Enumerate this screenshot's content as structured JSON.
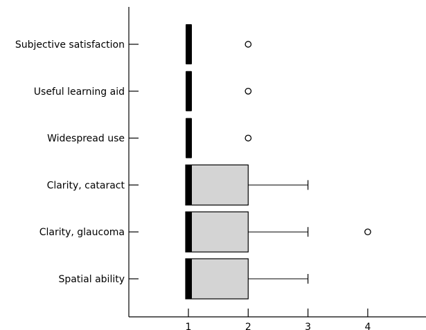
{
  "chart_data": {
    "type": "boxplot",
    "orientation": "horizontal",
    "title": "",
    "xlabel": "",
    "ylabel": "",
    "x_ticks": [
      "1",
      "2",
      "3",
      "4"
    ],
    "xlim": [
      0.2,
      5
    ],
    "grid": false,
    "colors": {
      "box_fill": "#d4d4d4",
      "median": "#000000",
      "stroke": "#000000",
      "outlier_fill": "#ffffff"
    },
    "categories": [
      "Subjective satisfaction",
      "Useful learning aid",
      "Widespread use",
      "Clarity, cataract",
      "Clarity, glaucoma",
      "Spatial ability"
    ],
    "boxes": [
      {
        "category": "Subjective satisfaction",
        "whisker_low": 1,
        "q1": 1,
        "median": 1,
        "q3": 1,
        "whisker_high": 1,
        "outliers": [
          2
        ]
      },
      {
        "category": "Useful learning aid",
        "whisker_low": 1,
        "q1": 1,
        "median": 1,
        "q3": 1,
        "whisker_high": 1,
        "outliers": [
          2
        ]
      },
      {
        "category": "Widespread use",
        "whisker_low": 1,
        "q1": 1,
        "median": 1,
        "q3": 1,
        "whisker_high": 1,
        "outliers": [
          2
        ]
      },
      {
        "category": "Clarity, cataract",
        "whisker_low": 1,
        "q1": 1,
        "median": 1,
        "q3": 2,
        "whisker_high": 3,
        "outliers": []
      },
      {
        "category": "Clarity, glaucoma",
        "whisker_low": 1,
        "q1": 1,
        "median": 1,
        "q3": 2,
        "whisker_high": 3,
        "outliers": [
          4
        ]
      },
      {
        "category": "Spatial ability",
        "whisker_low": 1,
        "q1": 1,
        "median": 1,
        "q3": 2,
        "whisker_high": 3,
        "outliers": []
      }
    ]
  }
}
